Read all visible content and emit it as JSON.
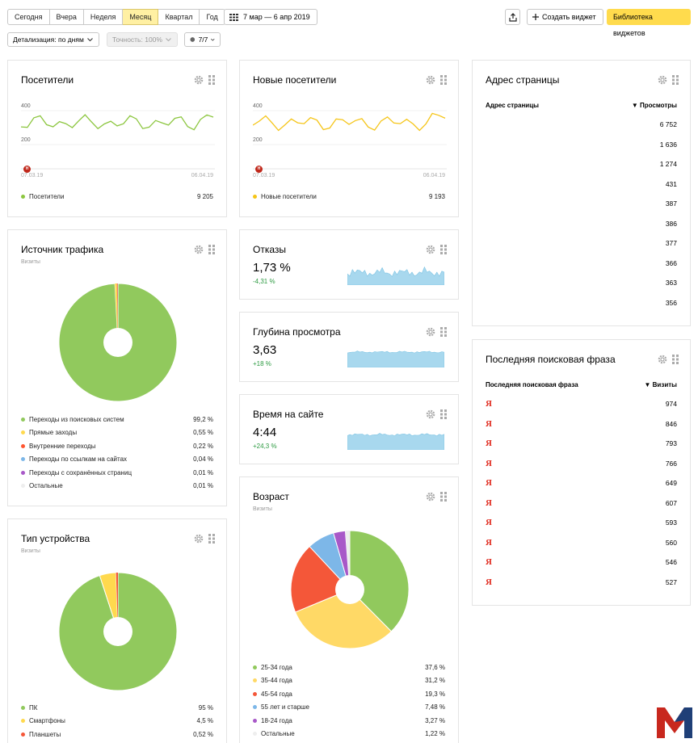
{
  "toolbar": {
    "periods": [
      "Сегодня",
      "Вчера",
      "Неделя",
      "Месяц",
      "Квартал",
      "Год"
    ],
    "active_period": "Месяц",
    "date_range": "7 мар — 6 апр 2019",
    "create_widget": "Создать виджет",
    "library": "Библиотека виджетов"
  },
  "filters": {
    "detail": "Детализация: по дням",
    "accuracy": "Точность: 100%",
    "segments": "7/7"
  },
  "visitors": {
    "title": "Посетители",
    "y_ticks": [
      "400",
      "200"
    ],
    "date_start": "07.03.19",
    "date_end": "06.04.19",
    "marker": "Н",
    "legend": "Посетители",
    "value": "9 205",
    "color": "#8cc63f"
  },
  "new_visitors": {
    "title": "Новые посетители",
    "y_ticks": [
      "400",
      "200"
    ],
    "date_start": "07.03.19",
    "date_end": "06.04.19",
    "marker": "Н",
    "legend": "Новые посетители",
    "value": "9 193",
    "color": "#f5c518"
  },
  "address": {
    "title": "Адрес страницы",
    "col1": "Адрес страницы",
    "col2": "▼ Просмотры",
    "values": [
      "6 752",
      "1 636",
      "1 274",
      "431",
      "387",
      "386",
      "377",
      "366",
      "363",
      "356"
    ]
  },
  "traffic": {
    "title": "Источник трафика",
    "subtitle": "Визиты",
    "items": [
      {
        "label": "Переходы из поисковых систем",
        "value": "99,2 %",
        "color": "#91c95d"
      },
      {
        "label": "Прямые заходы",
        "value": "0,55 %",
        "color": "#ffd94e"
      },
      {
        "label": "Внутренние переходы",
        "value": "0,22 %",
        "color": "#ff5530"
      },
      {
        "label": "Переходы по ссылкам на сайтах",
        "value": "0,04 %",
        "color": "#7db7e8"
      },
      {
        "label": "Переходы с сохранённых страниц",
        "value": "0,01 %",
        "color": "#a858c8"
      },
      {
        "label": "Остальные",
        "value": "0,01 %",
        "color": "#eeeeee"
      }
    ]
  },
  "bounce": {
    "title": "Отказы",
    "value": "1,73 %",
    "delta": "-4,31 %"
  },
  "depth": {
    "title": "Глубина просмотра",
    "value": "3,63",
    "delta": "+18 %"
  },
  "time": {
    "title": "Время на сайте",
    "value": "4:44",
    "delta": "+24,3 %"
  },
  "age": {
    "title": "Возраст",
    "subtitle": "Визиты",
    "items": [
      {
        "label": "25-34 года",
        "value": "37,6 %",
        "color": "#91c95d"
      },
      {
        "label": "35-44 года",
        "value": "31,2 %",
        "color": "#ffd966"
      },
      {
        "label": "45-54 года",
        "value": "19,3 %",
        "color": "#f45739"
      },
      {
        "label": "55 лет и старше",
        "value": "7,48 %",
        "color": "#7db7e8"
      },
      {
        "label": "18-24 года",
        "value": "3,27 %",
        "color": "#a858c8"
      },
      {
        "label": "Остальные",
        "value": "1,22 %",
        "color": "#eeeeee"
      }
    ]
  },
  "search": {
    "title": "Последняя поисковая фраза",
    "col1": "Последняя поисковая фраза",
    "col2": "▼ Визиты",
    "engine_glyph": "Я",
    "values": [
      "974",
      "846",
      "793",
      "766",
      "649",
      "607",
      "593",
      "560",
      "546",
      "527"
    ]
  },
  "device": {
    "title": "Тип устройства",
    "subtitle": "Визиты",
    "items": [
      {
        "label": "ПК",
        "value": "95 %",
        "color": "#91c95d"
      },
      {
        "label": "Смартфоны",
        "value": "4,5 %",
        "color": "#ffd94e"
      },
      {
        "label": "Планшеты",
        "value": "0,52 %",
        "color": "#f45739"
      }
    ]
  },
  "icons": {
    "calendar": "calendar-icon",
    "share": "share-icon",
    "plus": "plus-icon",
    "gear": "gear-icon",
    "drag": "drag-handle-icon",
    "segment": "segment-icon",
    "chevron": "chevron-down-icon",
    "logo": "m-logo"
  }
}
